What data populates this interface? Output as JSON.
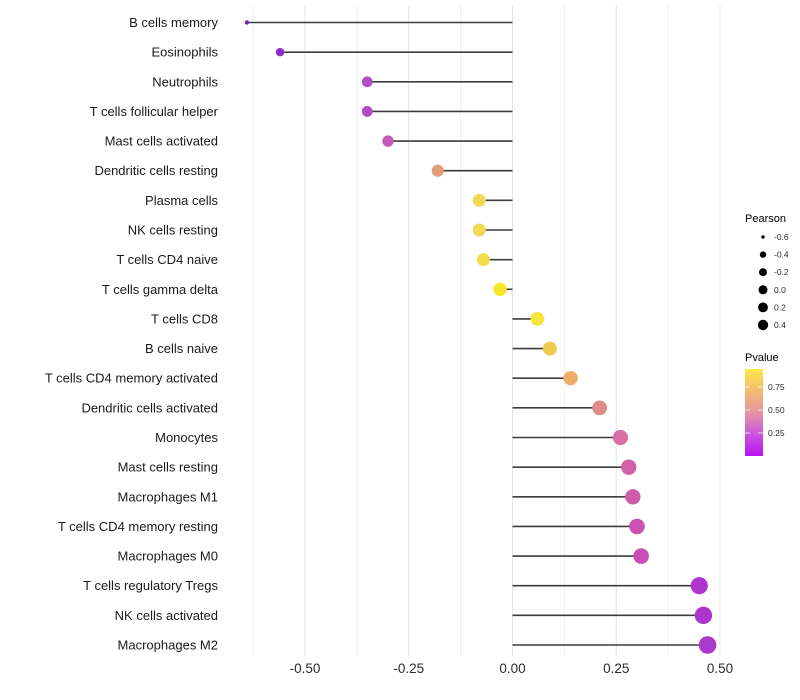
{
  "chart_data": {
    "type": "lollipop",
    "orientation": "horizontal",
    "xlabel": "",
    "ylabel": "",
    "xlim": [
      -0.7,
      0.525
    ],
    "grid": "vertical-only",
    "x_ticks": [
      {
        "value": -0.5,
        "label": "-0.50"
      },
      {
        "value": -0.25,
        "label": "-0.25"
      },
      {
        "value": 0.0,
        "label": "0.00"
      },
      {
        "value": 0.25,
        "label": "0.25"
      },
      {
        "value": 0.5,
        "label": "0.50"
      }
    ],
    "x_minor_gridlines": [
      -0.625,
      -0.375,
      -0.125,
      0.125,
      0.375
    ],
    "series_encoding": {
      "size": "Pearson correlation",
      "color": "Pvalue (plasma-like gradient, yellow = high, purple = low)"
    },
    "points": [
      {
        "category": "B cells memory",
        "pearson": -0.64,
        "dot_color": "#7A22B8",
        "radius": 2.2
      },
      {
        "category": "Eosinophils",
        "pearson": -0.56,
        "dot_color": "#8E2BCE",
        "radius": 4.2
      },
      {
        "category": "Neutrophils",
        "pearson": -0.35,
        "dot_color": "#B44EC6",
        "radius": 5.4
      },
      {
        "category": "T cells follicular helper",
        "pearson": -0.35,
        "dot_color": "#B24CC6",
        "radius": 5.4
      },
      {
        "category": "Mast cells activated",
        "pearson": -0.3,
        "dot_color": "#C558B8",
        "radius": 5.7
      },
      {
        "category": "Dendritic cells resting",
        "pearson": -0.18,
        "dot_color": "#E39B7C",
        "radius": 6.1
      },
      {
        "category": "Plasma cells",
        "pearson": -0.08,
        "dot_color": "#F2D955",
        "radius": 6.5
      },
      {
        "category": "NK cells resting",
        "pearson": -0.08,
        "dot_color": "#F2D955",
        "radius": 6.5
      },
      {
        "category": "T cells CD4 naive",
        "pearson": -0.07,
        "dot_color": "#F3DB52",
        "radius": 6.5
      },
      {
        "category": "T cells gamma delta",
        "pearson": -0.03,
        "dot_color": "#F8E72A",
        "radius": 6.7
      },
      {
        "category": "T cells CD8",
        "pearson": 0.06,
        "dot_color": "#F7E43C",
        "radius": 6.9
      },
      {
        "category": "B cells naive",
        "pearson": 0.09,
        "dot_color": "#F0CB52",
        "radius": 7.0
      },
      {
        "category": "T cells CD4 memory activated",
        "pearson": 0.14,
        "dot_color": "#EDAE66",
        "radius": 7.2
      },
      {
        "category": "Dendritic cells activated",
        "pearson": 0.21,
        "dot_color": "#E08A8C",
        "radius": 7.4
      },
      {
        "category": "Monocytes",
        "pearson": 0.26,
        "dot_color": "#D96FA5",
        "radius": 7.6
      },
      {
        "category": "Mast cells resting",
        "pearson": 0.28,
        "dot_color": "#D160A8",
        "radius": 7.7
      },
      {
        "category": "Macrophages M1",
        "pearson": 0.29,
        "dot_color": "#CF5CAB",
        "radius": 7.7
      },
      {
        "category": "T cells CD4 memory resting",
        "pearson": 0.3,
        "dot_color": "#CB52B2",
        "radius": 7.8
      },
      {
        "category": "Macrophages M0",
        "pearson": 0.31,
        "dot_color": "#C94DB8",
        "radius": 7.8
      },
      {
        "category": "T cells regulatory  Tregs",
        "pearson": 0.45,
        "dot_color": "#AE36CE",
        "radius": 8.6
      },
      {
        "category": "NK cells activated",
        "pearson": 0.46,
        "dot_color": "#AD34CF",
        "radius": 8.7
      },
      {
        "category": "Macrophages M2",
        "pearson": 0.47,
        "dot_color": "#AC39CE",
        "radius": 8.8
      }
    ],
    "legend": {
      "pearson": {
        "title": "Pearson",
        "items": [
          {
            "label": "-0.6",
            "radius": 1.7
          },
          {
            "label": "-0.4",
            "radius": 3.2
          },
          {
            "label": "-0.2",
            "radius": 4.0
          },
          {
            "label": "0.0",
            "radius": 4.5
          },
          {
            "label": "0.2",
            "radius": 4.9
          },
          {
            "label": "0.4",
            "radius": 5.2
          }
        ],
        "dot_color": "#000000"
      },
      "pvalue": {
        "title": "Pvalue",
        "ticks": [
          {
            "label": "0.75",
            "y": 387
          },
          {
            "label": "0.50",
            "y": 410
          },
          {
            "label": "0.25",
            "y": 433
          }
        ],
        "gradient_top_to_bottom": [
          "#FAE84B",
          "#F4BC6E",
          "#E495A4",
          "#CC54DC",
          "#B613F3"
        ]
      }
    },
    "colors": {
      "segment": "#3d3d3d",
      "grid_major": "#e4e4e4",
      "grid_minor": "#f0f0f0",
      "background": "#ffffff"
    }
  }
}
